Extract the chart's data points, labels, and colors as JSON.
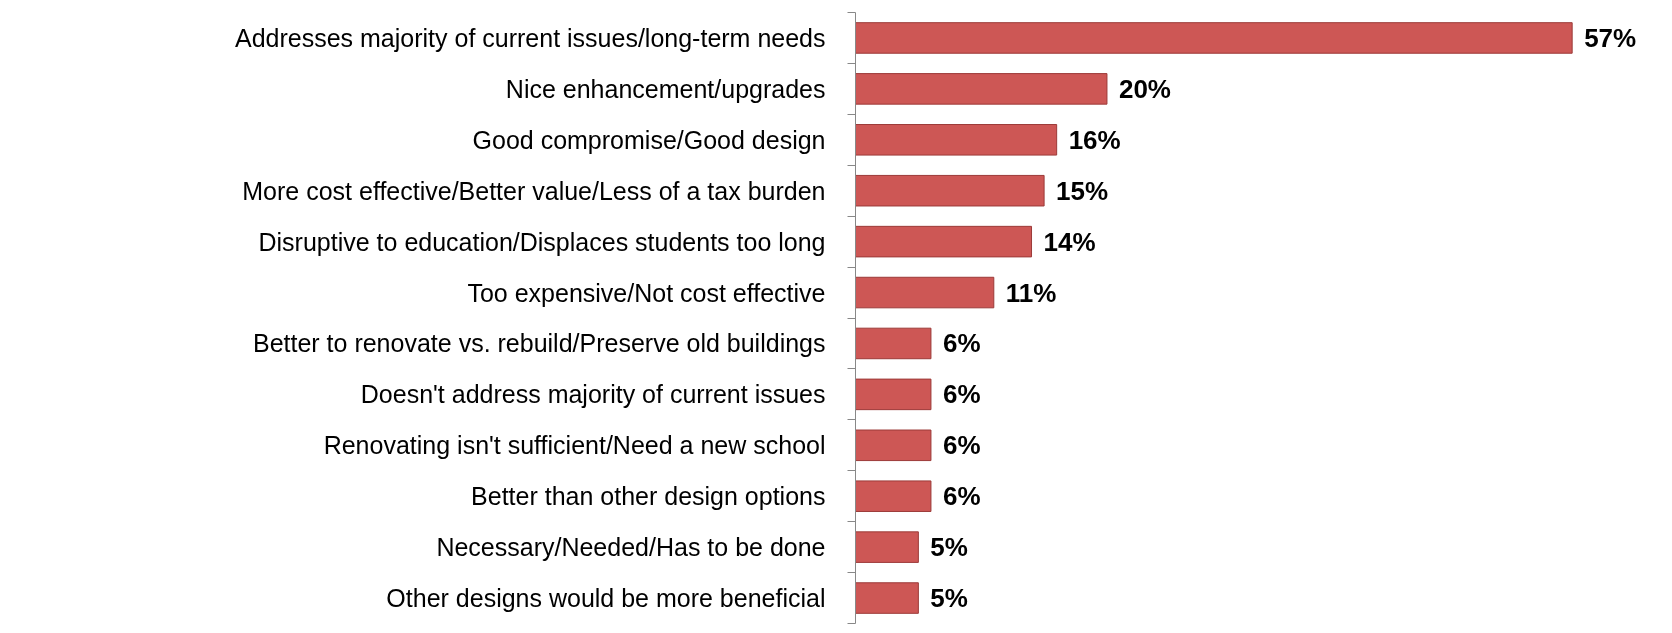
{
  "chart_data": {
    "type": "bar",
    "orientation": "horizontal",
    "categories": [
      "Addresses majority of current issues/long-term needs",
      "Nice enhancement/upgrades",
      "Good compromise/Good design",
      "More cost effective/Better value/Less of a tax burden",
      "Disruptive to education/Displaces students too long",
      "Too expensive/Not cost effective",
      "Better to renovate vs. rebuild/Preserve old buildings",
      "Doesn't address majority of current issues",
      "Renovating isn't sufficient/Need a new school",
      "Better than other design options",
      "Necessary/Needed/Has to be done",
      "Other designs would be more beneficial"
    ],
    "values": [
      57,
      20,
      16,
      15,
      14,
      11,
      6,
      6,
      6,
      6,
      5,
      5
    ],
    "value_labels": [
      "57%",
      "20%",
      "16%",
      "15%",
      "14%",
      "11%",
      "6%",
      "6%",
      "6%",
      "6%",
      "5%",
      "5%"
    ],
    "color": "#cd5755",
    "grid": false
  }
}
